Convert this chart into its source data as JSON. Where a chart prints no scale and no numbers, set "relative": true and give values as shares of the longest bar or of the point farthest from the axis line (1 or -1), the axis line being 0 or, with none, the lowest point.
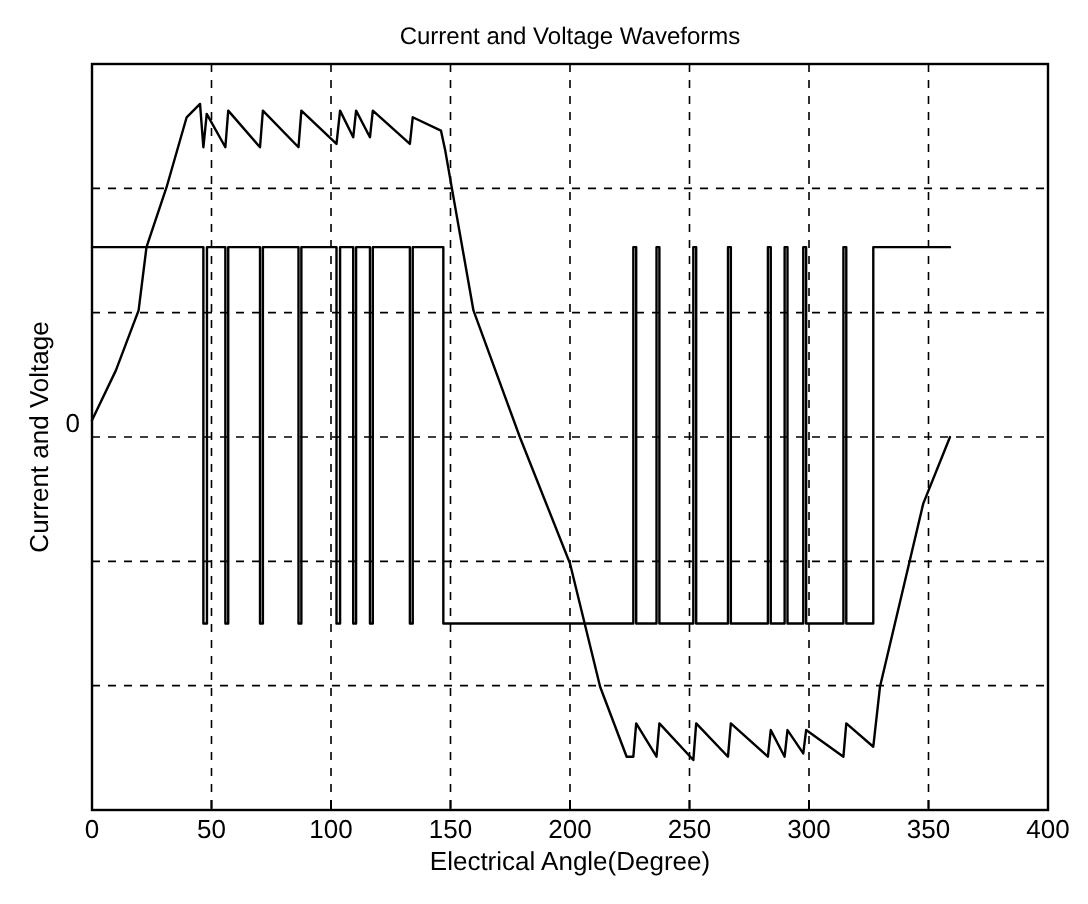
{
  "chart_data": {
    "type": "line",
    "title": "Current and Voltage Waveforms",
    "xlabel": "Electrical Angle(Degree)",
    "ylabel": "Current and Voltage",
    "relative": true,
    "grid": true,
    "xlim": [
      0,
      400
    ],
    "xticks": [
      0,
      50,
      100,
      150,
      200,
      250,
      300,
      350,
      400
    ],
    "annotations": [
      "0"
    ],
    "series": [
      {
        "color": "#000000",
        "x": [
          0,
          46.6,
          46.6,
          48.1,
          48.1,
          55.8,
          55.8,
          57,
          57,
          70.3,
          70.3,
          71.5,
          71.5,
          86.4,
          86.4,
          87.6,
          87.6,
          102.3,
          102.3,
          103.8,
          103.8,
          109.3,
          109.3,
          110.5,
          110.5,
          116.3,
          116.3,
          117.5,
          117.5,
          133,
          133,
          134.2,
          134.2,
          147,
          147,
          226.5,
          226.5,
          227.7,
          227.7,
          236.2,
          236.2,
          237.4,
          237.4,
          251.6,
          251.6,
          252.8,
          252.8,
          266.1,
          266.1,
          267.3,
          267.3,
          282.8,
          282.8,
          284,
          284,
          289.8,
          289.8,
          291,
          291,
          297.6,
          297.6,
          298.8,
          298.8,
          314.4,
          314.4,
          315.6,
          315.6,
          326.9,
          326.9,
          359
        ],
        "values": [
          0.57,
          0.57,
          -0.56,
          -0.56,
          0.57,
          0.57,
          -0.56,
          -0.56,
          0.57,
          0.57,
          -0.56,
          -0.56,
          0.57,
          0.57,
          -0.56,
          -0.56,
          0.57,
          0.57,
          -0.56,
          -0.56,
          0.57,
          0.57,
          -0.56,
          -0.56,
          0.57,
          0.57,
          -0.56,
          -0.56,
          0.57,
          0.57,
          -0.56,
          -0.56,
          0.57,
          0.57,
          -0.56,
          -0.56,
          0.57,
          0.57,
          -0.56,
          -0.56,
          0.57,
          0.57,
          -0.56,
          -0.56,
          0.57,
          0.57,
          -0.56,
          -0.56,
          0.57,
          0.57,
          -0.56,
          -0.56,
          0.57,
          0.57,
          -0.56,
          -0.56,
          0.57,
          0.57,
          -0.56,
          -0.56,
          0.57,
          0.57,
          -0.56,
          -0.56,
          0.57,
          0.57,
          -0.56,
          -0.56,
          0.57,
          0.57
        ]
      },
      {
        "color": "#000000",
        "x": [
          0,
          10,
          19.5,
          22.8,
          31.2,
          39.6,
          45.2,
          46.6,
          48,
          55.8,
          57,
          70.3,
          71.5,
          86.4,
          87.6,
          102.3,
          103.8,
          109.3,
          110.5,
          116.3,
          117.5,
          133,
          134.2,
          146,
          147.8,
          159.6,
          179,
          200,
          212.6,
          223.7,
          226.5,
          227.7,
          236.2,
          237.4,
          251.6,
          252.8,
          266.1,
          267.3,
          282.8,
          284,
          289.8,
          291,
          297.6,
          298.8,
          314.4,
          315.6,
          326.9,
          329.7,
          347.8,
          359
        ],
        "values": [
          0.05,
          0.2,
          0.38,
          0.57,
          0.75,
          0.96,
          1.0,
          0.87,
          0.97,
          0.87,
          0.98,
          0.87,
          0.98,
          0.87,
          0.98,
          0.88,
          0.98,
          0.9,
          0.98,
          0.9,
          0.98,
          0.88,
          0.96,
          0.92,
          0.86,
          0.38,
          0,
          -0.38,
          -0.75,
          -0.96,
          -0.96,
          -0.86,
          -0.96,
          -0.86,
          -0.97,
          -0.86,
          -0.96,
          -0.86,
          -0.96,
          -0.88,
          -0.96,
          -0.88,
          -0.95,
          -0.88,
          -0.96,
          -0.86,
          -0.93,
          -0.75,
          -0.2,
          0
        ]
      }
    ]
  }
}
